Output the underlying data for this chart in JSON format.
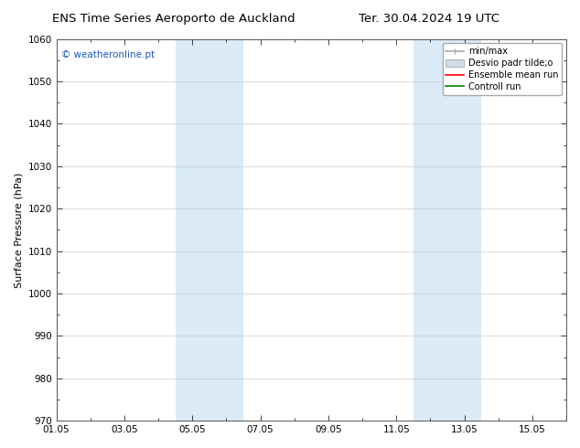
{
  "title_left": "ENS Time Series Aeroporto de Auckland",
  "title_right": "Ter. 30.04.2024 19 UTC",
  "ylabel": "Surface Pressure (hPa)",
  "ylim": [
    970,
    1060
  ],
  "yticks": [
    970,
    980,
    990,
    1000,
    1010,
    1020,
    1030,
    1040,
    1050,
    1060
  ],
  "xlim": [
    0,
    15
  ],
  "xtick_labels": [
    "01.05",
    "03.05",
    "05.05",
    "07.05",
    "09.05",
    "11.05",
    "13.05",
    "15.05"
  ],
  "xtick_positions": [
    0,
    2,
    4,
    6,
    8,
    10,
    12,
    14
  ],
  "shaded_regions": [
    {
      "start": 3.5,
      "end": 5.5
    },
    {
      "start": 10.5,
      "end": 12.5
    }
  ],
  "shaded_color": "#daeaf7",
  "watermark": "© weatheronline.pt",
  "watermark_color": "#1a5ab5",
  "legend_labels": [
    "min/max",
    "Desvio padr tilde;o",
    "Ensemble mean run",
    "Controll run"
  ],
  "legend_colors": [
    "#aaaaaa",
    "#d0dce8",
    "red",
    "green"
  ],
  "bg_color": "#ffffff",
  "grid_color": "#cccccc",
  "title_fontsize": 9.5,
  "axis_label_fontsize": 8,
  "tick_fontsize": 7.5,
  "legend_fontsize": 7,
  "watermark_fontsize": 7.5
}
